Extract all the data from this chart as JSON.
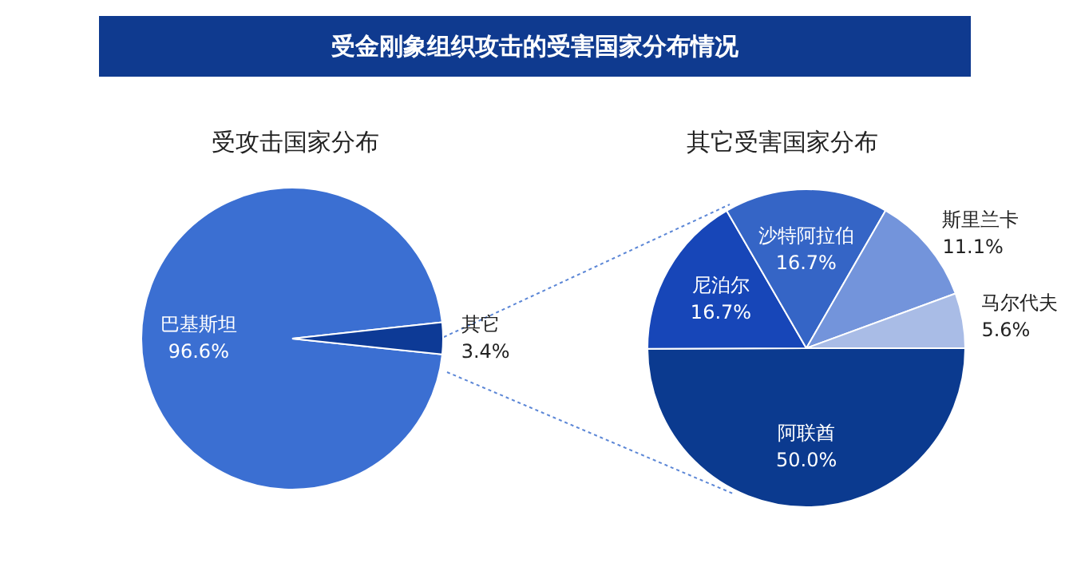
{
  "chart_data": [
    {
      "type": "pie",
      "title": "受金刚象组织攻击的受害国家分布情况",
      "subtitle": "受攻击国家分布",
      "categories": [
        "巴基斯坦",
        "其它"
      ],
      "values": [
        96.6,
        3.4
      ],
      "colors": [
        "#3b6fd2",
        "#0d3a96"
      ],
      "value_labels": [
        "96.6%",
        "3.4%"
      ],
      "legend": false
    },
    {
      "type": "pie",
      "subtitle": "其它受害国家分布",
      "categories": [
        "阿联酋",
        "尼泊尔",
        "沙特阿拉伯",
        "斯里兰卡",
        "马尔代夫"
      ],
      "values": [
        50.0,
        16.7,
        16.7,
        11.1,
        5.6
      ],
      "colors": [
        "#0b3a8f",
        "#1746b8",
        "#3565c6",
        "#7394db",
        "#a9bce6"
      ],
      "value_labels": [
        "50.0%",
        "16.7%",
        "16.7%",
        "11.1%",
        "5.6%"
      ],
      "legend": false
    }
  ]
}
